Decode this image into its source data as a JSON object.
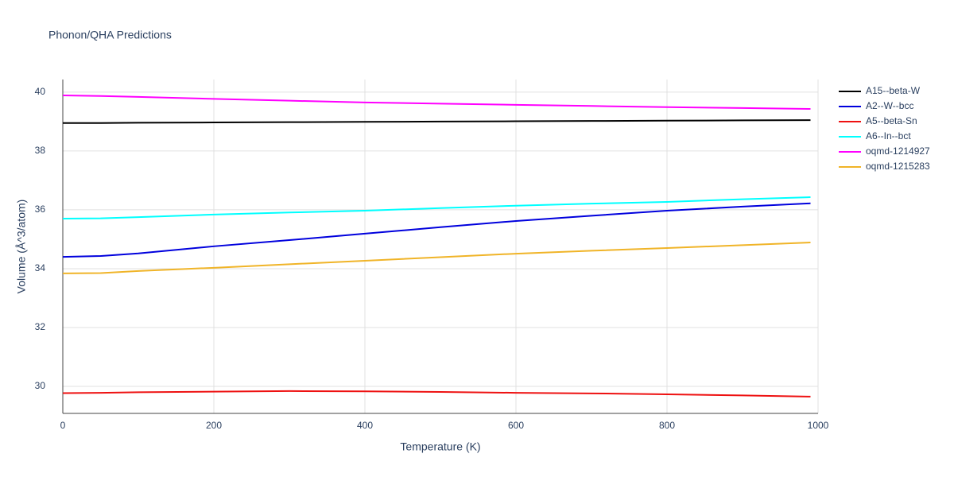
{
  "chart_data": {
    "type": "line",
    "title": "Phonon/QHA Predictions",
    "x_label": "Temperature (K)",
    "y_label": "Volume (Å^3/atom)",
    "x": [
      0,
      50,
      100,
      200,
      300,
      400,
      500,
      600,
      700,
      800,
      900,
      990
    ],
    "series": [
      {
        "name": "A15--beta-W",
        "color": "#000000",
        "values": [
          38.95,
          38.95,
          38.96,
          38.97,
          38.98,
          38.99,
          39.0,
          39.01,
          39.02,
          39.03,
          39.04,
          39.05
        ]
      },
      {
        "name": "A2--W--bcc",
        "color": "#0000dd",
        "values": [
          34.4,
          34.43,
          34.52,
          34.76,
          34.97,
          35.19,
          35.41,
          35.62,
          35.8,
          35.97,
          36.11,
          36.22
        ]
      },
      {
        "name": "A5--beta-Sn",
        "color": "#ee1111",
        "values": [
          29.77,
          29.78,
          29.8,
          29.82,
          29.84,
          29.83,
          29.81,
          29.78,
          29.76,
          29.73,
          29.69,
          29.65
        ]
      },
      {
        "name": "A6--In--bct",
        "color": "#00ffff",
        "values": [
          35.7,
          35.71,
          35.75,
          35.84,
          35.91,
          35.97,
          36.06,
          36.14,
          36.21,
          36.27,
          36.36,
          36.43
        ]
      },
      {
        "name": "oqmd-1214927",
        "color": "#ff00ff",
        "values": [
          39.89,
          39.87,
          39.84,
          39.77,
          39.71,
          39.65,
          39.61,
          39.57,
          39.53,
          39.49,
          39.46,
          39.43
        ]
      },
      {
        "name": "oqmd-1215283",
        "color": "#f0b428",
        "values": [
          33.84,
          33.85,
          33.92,
          34.03,
          34.15,
          34.27,
          34.39,
          34.51,
          34.61,
          34.7,
          34.8,
          34.89
        ]
      }
    ],
    "xlim": [
      0,
      1000
    ],
    "xticks": [
      0,
      200,
      400,
      600,
      800,
      1000
    ],
    "ylim": [
      29.08,
      40.43
    ],
    "yticks": [
      30,
      32,
      34,
      36,
      38,
      40
    ],
    "grid": true,
    "legend": "right"
  }
}
